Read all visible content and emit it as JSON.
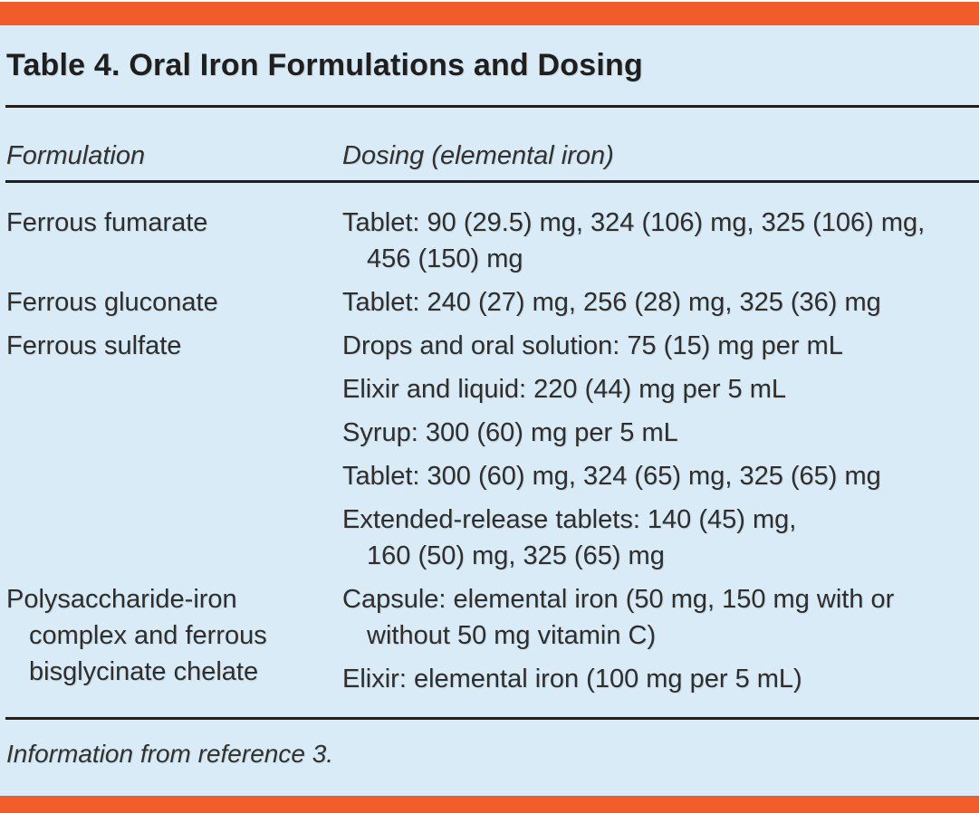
{
  "title": "Table 4. Oral Iron Formulations and Dosing",
  "columns": {
    "formulation": "Formulation",
    "dosing": "Dosing (elemental iron)"
  },
  "rows": [
    {
      "formulation_lines": [
        "Ferrous fumarate"
      ],
      "dosing_entries": [
        [
          "Tablet: 90 (29.5) mg, 324 (106) mg, 325 (106) mg,",
          "456 (150) mg"
        ]
      ]
    },
    {
      "formulation_lines": [
        "Ferrous gluconate"
      ],
      "dosing_entries": [
        [
          "Tablet: 240 (27) mg, 256 (28) mg, 325 (36) mg"
        ]
      ]
    },
    {
      "formulation_lines": [
        "Ferrous sulfate"
      ],
      "dosing_entries": [
        [
          "Drops and oral solution: 75 (15) mg per mL"
        ],
        [
          "Elixir and liquid: 220 (44) mg per 5 mL"
        ],
        [
          "Syrup: 300 (60) mg per 5 mL"
        ],
        [
          "Tablet: 300 (60) mg, 324 (65) mg, 325 (65) mg"
        ],
        [
          "Extended-release tablets: 140 (45) mg,",
          "160 (50) mg, 325 (65) mg"
        ]
      ]
    },
    {
      "formulation_lines": [
        "Polysaccharide-iron",
        "complex and ferrous",
        "bisglycinate chelate"
      ],
      "dosing_entries": [
        [
          "Capsule: elemental iron (50 mg, 150 mg with or",
          "without 50 mg vitamin C)"
        ],
        [
          "Elixir: elemental iron (100 mg per 5 mL)"
        ]
      ]
    }
  ],
  "footnote": "Information from reference 3.",
  "colors": {
    "accent_orange": "#f25c2a",
    "background_blue": "#d8ebf7",
    "text": "#2e2a26",
    "rule": "#211e1b"
  }
}
